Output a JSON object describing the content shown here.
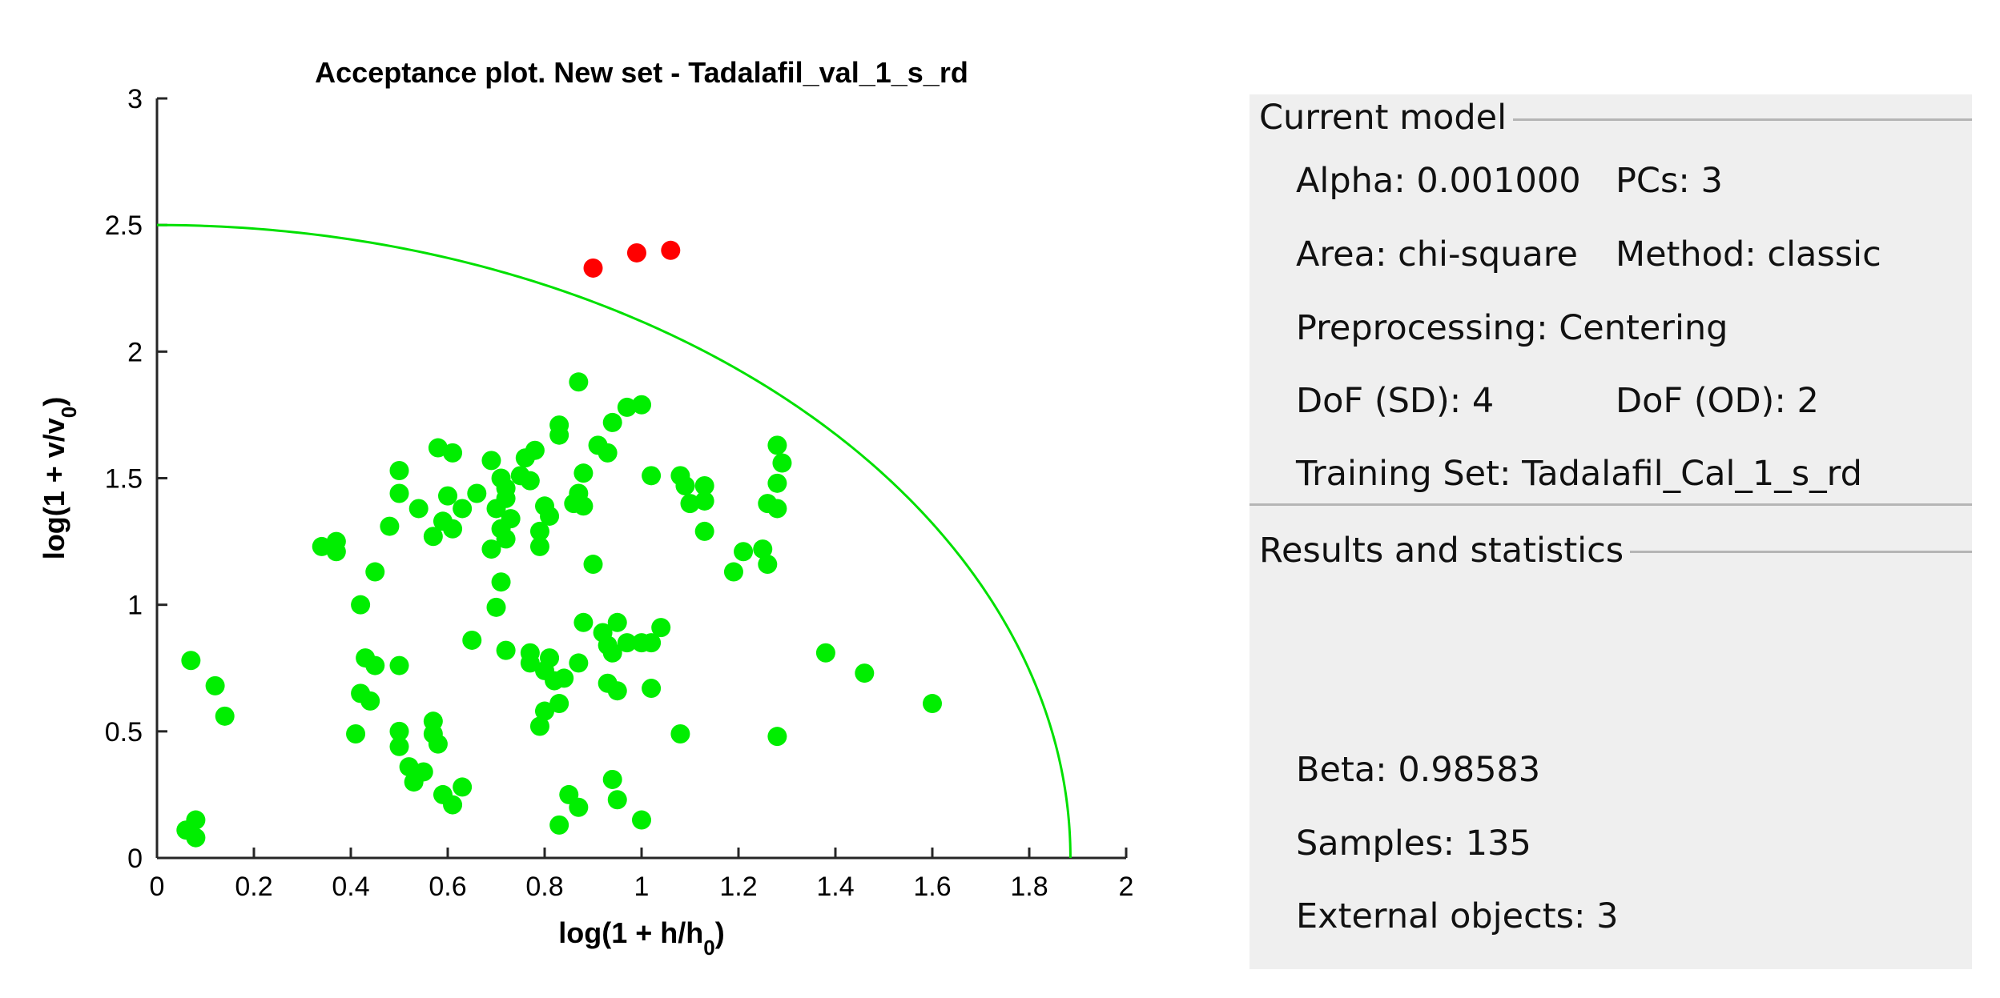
{
  "chart_data": {
    "type": "scatter",
    "title": "Acceptance plot. New set - Tadalafil_val_1_s_rd",
    "xlabel": "log(1 + h/h0)",
    "ylabel": "log(1 + v/v0)",
    "xlim": [
      0,
      2
    ],
    "ylim": [
      0,
      3
    ],
    "xticks": [
      "0",
      "0.2",
      "0.4",
      "0.6",
      "0.8",
      "1",
      "1.2",
      "1.4",
      "1.6",
      "1.8",
      "2"
    ],
    "yticks": [
      "0",
      "0.5",
      "1",
      "1.5",
      "2",
      "2.5",
      "3"
    ],
    "grid": false,
    "legend": "none",
    "boundary": {
      "x_intercept": 1.885,
      "y_intercept": 2.5,
      "color": "#00e000"
    },
    "series": [
      {
        "color": "#00ee00",
        "points": [
          [
            0.07,
            0.78
          ],
          [
            0.12,
            0.68
          ],
          [
            0.14,
            0.56
          ],
          [
            0.06,
            0.11
          ],
          [
            0.08,
            0.15
          ],
          [
            0.08,
            0.08
          ],
          [
            0.34,
            1.23
          ],
          [
            0.37,
            1.25
          ],
          [
            0.37,
            1.21
          ],
          [
            0.42,
            1.0
          ],
          [
            0.45,
            1.13
          ],
          [
            0.48,
            1.31
          ],
          [
            0.43,
            0.79
          ],
          [
            0.45,
            0.76
          ],
          [
            0.42,
            0.65
          ],
          [
            0.44,
            0.62
          ],
          [
            0.41,
            0.49
          ],
          [
            0.5,
            0.76
          ],
          [
            0.5,
            0.5
          ],
          [
            0.5,
            0.44
          ],
          [
            0.5,
            1.53
          ],
          [
            0.5,
            1.44
          ],
          [
            0.54,
            1.38
          ],
          [
            0.58,
            1.62
          ],
          [
            0.61,
            1.6
          ],
          [
            0.6,
            1.43
          ],
          [
            0.63,
            1.38
          ],
          [
            0.59,
            1.33
          ],
          [
            0.61,
            1.3
          ],
          [
            0.57,
            1.27
          ],
          [
            0.66,
            1.44
          ],
          [
            0.69,
            1.57
          ],
          [
            0.71,
            1.5
          ],
          [
            0.72,
            1.46
          ],
          [
            0.72,
            1.42
          ],
          [
            0.7,
            1.38
          ],
          [
            0.73,
            1.34
          ],
          [
            0.71,
            1.3
          ],
          [
            0.72,
            1.26
          ],
          [
            0.69,
            1.22
          ],
          [
            0.71,
            1.09
          ],
          [
            0.7,
            0.99
          ],
          [
            0.65,
            0.86
          ],
          [
            0.72,
            0.82
          ],
          [
            0.52,
            0.36
          ],
          [
            0.55,
            0.34
          ],
          [
            0.53,
            0.3
          ],
          [
            0.57,
            0.54
          ],
          [
            0.57,
            0.49
          ],
          [
            0.58,
            0.45
          ],
          [
            0.59,
            0.25
          ],
          [
            0.61,
            0.21
          ],
          [
            0.63,
            0.28
          ],
          [
            0.76,
            1.58
          ],
          [
            0.78,
            1.61
          ],
          [
            0.75,
            1.51
          ],
          [
            0.77,
            1.49
          ],
          [
            0.8,
            1.39
          ],
          [
            0.81,
            1.35
          ],
          [
            0.79,
            1.29
          ],
          [
            0.79,
            1.23
          ],
          [
            0.83,
            1.71
          ],
          [
            0.83,
            1.67
          ],
          [
            0.87,
            1.88
          ],
          [
            0.88,
            1.52
          ],
          [
            0.87,
            1.44
          ],
          [
            0.86,
            1.4
          ],
          [
            0.88,
            1.39
          ],
          [
            0.9,
            1.16
          ],
          [
            0.91,
            1.63
          ],
          [
            0.93,
            1.6
          ],
          [
            0.94,
            1.72
          ],
          [
            0.97,
            1.78
          ],
          [
            1.0,
            1.79
          ],
          [
            1.02,
            1.51
          ],
          [
            0.77,
            0.81
          ],
          [
            0.77,
            0.77
          ],
          [
            0.8,
            0.74
          ],
          [
            0.81,
            0.79
          ],
          [
            0.82,
            0.7
          ],
          [
            0.84,
            0.71
          ],
          [
            0.8,
            0.58
          ],
          [
            0.83,
            0.61
          ],
          [
            0.79,
            0.52
          ],
          [
            0.88,
            0.93
          ],
          [
            0.92,
            0.89
          ],
          [
            0.95,
            0.93
          ],
          [
            0.93,
            0.84
          ],
          [
            0.94,
            0.81
          ],
          [
            0.97,
            0.85
          ],
          [
            1.0,
            0.85
          ],
          [
            1.02,
            0.85
          ],
          [
            1.04,
            0.91
          ],
          [
            0.87,
            0.77
          ],
          [
            0.93,
            0.69
          ],
          [
            0.95,
            0.66
          ],
          [
            1.02,
            0.67
          ],
          [
            0.85,
            0.25
          ],
          [
            0.87,
            0.2
          ],
          [
            0.83,
            0.13
          ],
          [
            0.94,
            0.31
          ],
          [
            0.95,
            0.23
          ],
          [
            1.0,
            0.15
          ],
          [
            1.08,
            0.49
          ],
          [
            1.08,
            1.51
          ],
          [
            1.09,
            1.47
          ],
          [
            1.1,
            1.4
          ],
          [
            1.13,
            1.47
          ],
          [
            1.13,
            1.41
          ],
          [
            1.13,
            1.29
          ],
          [
            1.19,
            1.13
          ],
          [
            1.21,
            1.21
          ],
          [
            1.25,
            1.22
          ],
          [
            1.26,
            1.16
          ],
          [
            1.26,
            1.4
          ],
          [
            1.28,
            1.38
          ],
          [
            1.28,
            1.63
          ],
          [
            1.29,
            1.56
          ],
          [
            1.28,
            1.48
          ],
          [
            1.28,
            0.48
          ],
          [
            1.38,
            0.81
          ],
          [
            1.46,
            0.73
          ],
          [
            1.6,
            0.61
          ]
        ]
      },
      {
        "color": "#ff0000",
        "points": [
          [
            0.9,
            2.33
          ],
          [
            0.99,
            2.39
          ],
          [
            1.06,
            2.4
          ]
        ]
      }
    ]
  },
  "panel": {
    "model_group_title": "Current model",
    "alpha": "Alpha: 0.001000",
    "pcs": "PCs: 3",
    "area": "Area: chi-square",
    "method": "Method: classic",
    "preprocessing": "Preprocessing: Centering",
    "dof_sd": "DoF (SD): 4",
    "dof_od": "DoF (OD): 2",
    "training_set": "Training Set: Tadalafil_Cal_1_s_rd",
    "results_group_title": "Results and statistics",
    "beta": "Beta: 0.98583",
    "samples": "Samples: 135",
    "external_objects": "External objects: 3"
  }
}
